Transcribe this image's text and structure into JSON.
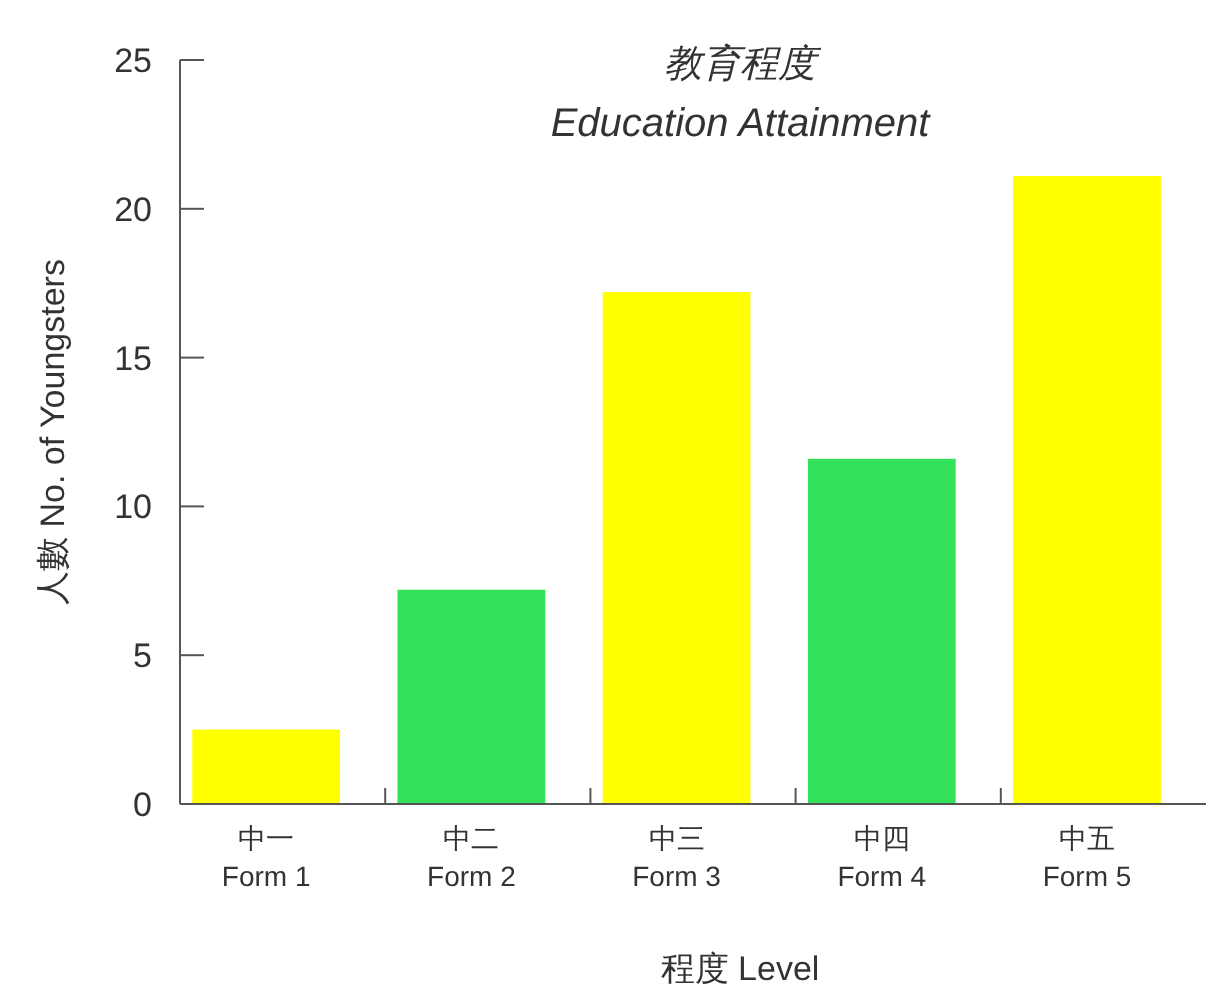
{
  "chart_data": {
    "type": "bar",
    "title": "教育程度",
    "subtitle": "Education Attainment",
    "xlabel": "程度  Level",
    "ylabel": "人數  No. of Youngsters",
    "categories": [
      "中一\nForm 1",
      "中二\nForm 2",
      "中三\nForm 3",
      "中四\nForm 4",
      "中五\nForm 5"
    ],
    "values": [
      2.5,
      7.2,
      17.2,
      11.6,
      21.1
    ],
    "colors": [
      "#ffff00",
      "#33e05a",
      "#ffff00",
      "#33e05a",
      "#ffff00"
    ],
    "ylim": [
      0,
      25
    ],
    "yticks": [
      0,
      5,
      10,
      15,
      20,
      25
    ],
    "grid": false
  }
}
